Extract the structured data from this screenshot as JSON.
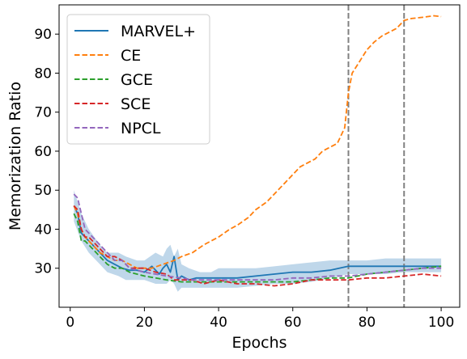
{
  "chart_data": {
    "type": "line",
    "title": "",
    "xlabel": "Epochs",
    "ylabel": "Memorization Ratio",
    "xlim": [
      -3,
      105
    ],
    "ylim": [
      20,
      97.5
    ],
    "xticks": [
      0,
      20,
      40,
      60,
      80,
      100
    ],
    "yticks": [
      30,
      40,
      50,
      60,
      70,
      80,
      90
    ],
    "grid": false,
    "legend_position": "top-left",
    "vlines": [
      {
        "x": 75,
        "style": "dashed",
        "color": "#808080"
      },
      {
        "x": 90,
        "style": "dashed",
        "color": "#808080"
      }
    ],
    "band": {
      "series": "MARVEL+",
      "color": "#a9c9e3",
      "x": [
        1,
        3,
        5,
        8,
        10,
        13,
        15,
        18,
        20,
        23,
        25,
        26,
        27,
        28,
        29,
        30,
        32,
        35,
        38,
        40,
        45,
        50,
        55,
        60,
        65,
        70,
        75,
        80,
        85,
        90,
        95,
        100
      ],
      "lower": [
        42,
        37,
        34,
        31,
        29,
        28,
        27,
        27,
        27,
        26,
        26,
        26,
        27,
        26,
        24,
        25,
        25,
        25,
        25,
        25,
        25,
        25.5,
        26,
        26,
        26.5,
        27.5,
        28.5,
        28.5,
        28.5,
        29,
        29,
        29
      ],
      "upper": [
        50,
        44,
        40,
        36,
        34,
        34,
        33,
        32,
        32,
        34,
        33,
        35,
        36,
        33,
        35,
        31,
        30,
        29,
        29,
        30,
        30,
        30,
        30.5,
        31,
        31.5,
        32,
        32,
        32,
        32.5,
        32.5,
        32.5,
        32.5
      ]
    },
    "series": [
      {
        "name": "MARVEL+",
        "color": "#1f77b4",
        "dash": "solid",
        "x": [
          1,
          2,
          3,
          4,
          5,
          6,
          8,
          10,
          12,
          14,
          16,
          18,
          20,
          22,
          24,
          25,
          26,
          27,
          28,
          29,
          30,
          32,
          34,
          36,
          38,
          40,
          45,
          50,
          55,
          60,
          65,
          70,
          75,
          80,
          85,
          90,
          95,
          100
        ],
        "y": [
          46,
          44,
          39,
          38,
          37,
          36,
          34,
          32,
          31,
          30,
          29.5,
          29.5,
          29,
          30.5,
          28.5,
          30,
          31,
          29,
          33,
          27,
          28,
          27,
          27.5,
          27.5,
          27.5,
          27.5,
          27.5,
          28,
          28.5,
          29,
          29,
          29.5,
          30.5,
          30.5,
          30.5,
          30.5,
          30.5,
          30.5
        ]
      },
      {
        "name": "CE",
        "color": "#ff7f0e",
        "dash": "dashed",
        "x": [
          1,
          2,
          3,
          4,
          5,
          6,
          8,
          10,
          12,
          14,
          16,
          18,
          20,
          22,
          25,
          28,
          30,
          33,
          36,
          38,
          40,
          43,
          45,
          48,
          50,
          53,
          55,
          58,
          60,
          62,
          64,
          66,
          68,
          70,
          72,
          74,
          75,
          76,
          78,
          80,
          82,
          84,
          86,
          88,
          90,
          92,
          95,
          98,
          100
        ],
        "y": [
          46,
          44,
          40,
          38,
          37,
          36,
          34,
          33,
          32,
          32,
          31,
          30,
          30,
          30,
          31,
          32,
          33,
          34,
          36,
          37,
          38,
          40,
          41,
          43,
          45,
          47,
          49,
          52,
          54,
          56,
          57,
          58,
          60,
          61,
          62,
          66,
          75,
          80,
          83,
          86,
          88,
          89.5,
          90.5,
          91.5,
          93.5,
          94,
          94.3,
          94.7,
          94.5
        ]
      },
      {
        "name": "GCE",
        "color": "#2ca02c",
        "dash": "dashed",
        "x": [
          1,
          2,
          3,
          4,
          5,
          6,
          8,
          10,
          12,
          14,
          16,
          18,
          20,
          23,
          26,
          30,
          33,
          36,
          40,
          45,
          50,
          55,
          60,
          65,
          70,
          75,
          80,
          85,
          90,
          95,
          100
        ],
        "y": [
          44,
          42,
          37,
          37,
          36,
          35,
          33,
          31,
          30,
          30,
          29,
          28.5,
          28,
          27.5,
          27,
          26.5,
          26.5,
          26.5,
          26.5,
          26.5,
          26.5,
          26.5,
          26.5,
          27,
          27.5,
          27.5,
          28.5,
          29,
          29.5,
          30,
          30.5
        ]
      },
      {
        "name": "SCE",
        "color": "#d62728",
        "dash": "dashed",
        "x": [
          1,
          2,
          3,
          4,
          5,
          6,
          8,
          10,
          12,
          14,
          16,
          18,
          20,
          23,
          26,
          28,
          30,
          33,
          36,
          40,
          45,
          50,
          55,
          60,
          65,
          70,
          75,
          80,
          85,
          90,
          95,
          100
        ],
        "y": [
          46,
          45,
          40,
          38,
          38,
          37,
          35,
          33,
          33,
          32,
          30,
          30,
          30,
          29,
          28.5,
          27,
          27,
          27,
          26,
          27,
          26,
          26,
          25.5,
          26,
          27,
          27,
          27,
          27.5,
          27.5,
          28,
          28.5,
          28
        ]
      },
      {
        "name": "NPCL",
        "color": "#9467bd",
        "dash": "dashed",
        "x": [
          1,
          2,
          3,
          4,
          5,
          6,
          8,
          10,
          12,
          14,
          16,
          18,
          20,
          23,
          26,
          30,
          33,
          36,
          40,
          45,
          50,
          55,
          60,
          65,
          70,
          75,
          80,
          85,
          90,
          95,
          100
        ],
        "y": [
          49,
          48,
          44,
          40,
          39,
          38,
          36,
          34,
          32,
          32,
          30,
          29.5,
          29,
          28.5,
          28,
          27.5,
          27,
          27,
          27,
          27,
          27,
          27,
          27.5,
          27.5,
          28,
          28,
          28.5,
          29,
          29.5,
          30,
          30
        ]
      }
    ]
  }
}
